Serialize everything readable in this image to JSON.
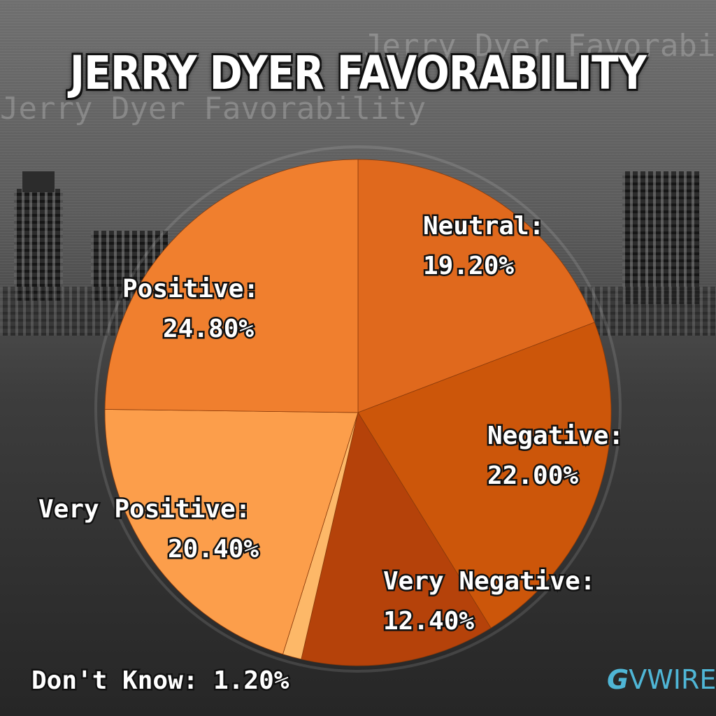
{
  "background_text": "Jerry Dyer Favorability",
  "logo": {
    "g": "G",
    "wire": "VWIRE"
  },
  "chart_data": {
    "type": "pie",
    "title": "JERRY DYER FAVORABILITY",
    "slices": [
      {
        "label": "Neutral:",
        "value": 19.2,
        "value_text": "19.20%",
        "color": "#e0691d"
      },
      {
        "label": "Negative:",
        "value": 22.0,
        "value_text": "22.00%",
        "color": "#cc560a"
      },
      {
        "label": "Very Negative:",
        "value": 12.4,
        "value_text": "12.40%",
        "color": "#b5420a"
      },
      {
        "label": "Don't Know:",
        "value": 1.2,
        "value_text": "1.20%",
        "color": "#fdb868"
      },
      {
        "label": "Very Positive:",
        "value": 20.4,
        "value_text": "20.40%",
        "color": "#fc9e4b"
      },
      {
        "label": "Positive:",
        "value": 24.8,
        "value_text": "24.80%",
        "color": "#f07f2e"
      }
    ]
  }
}
